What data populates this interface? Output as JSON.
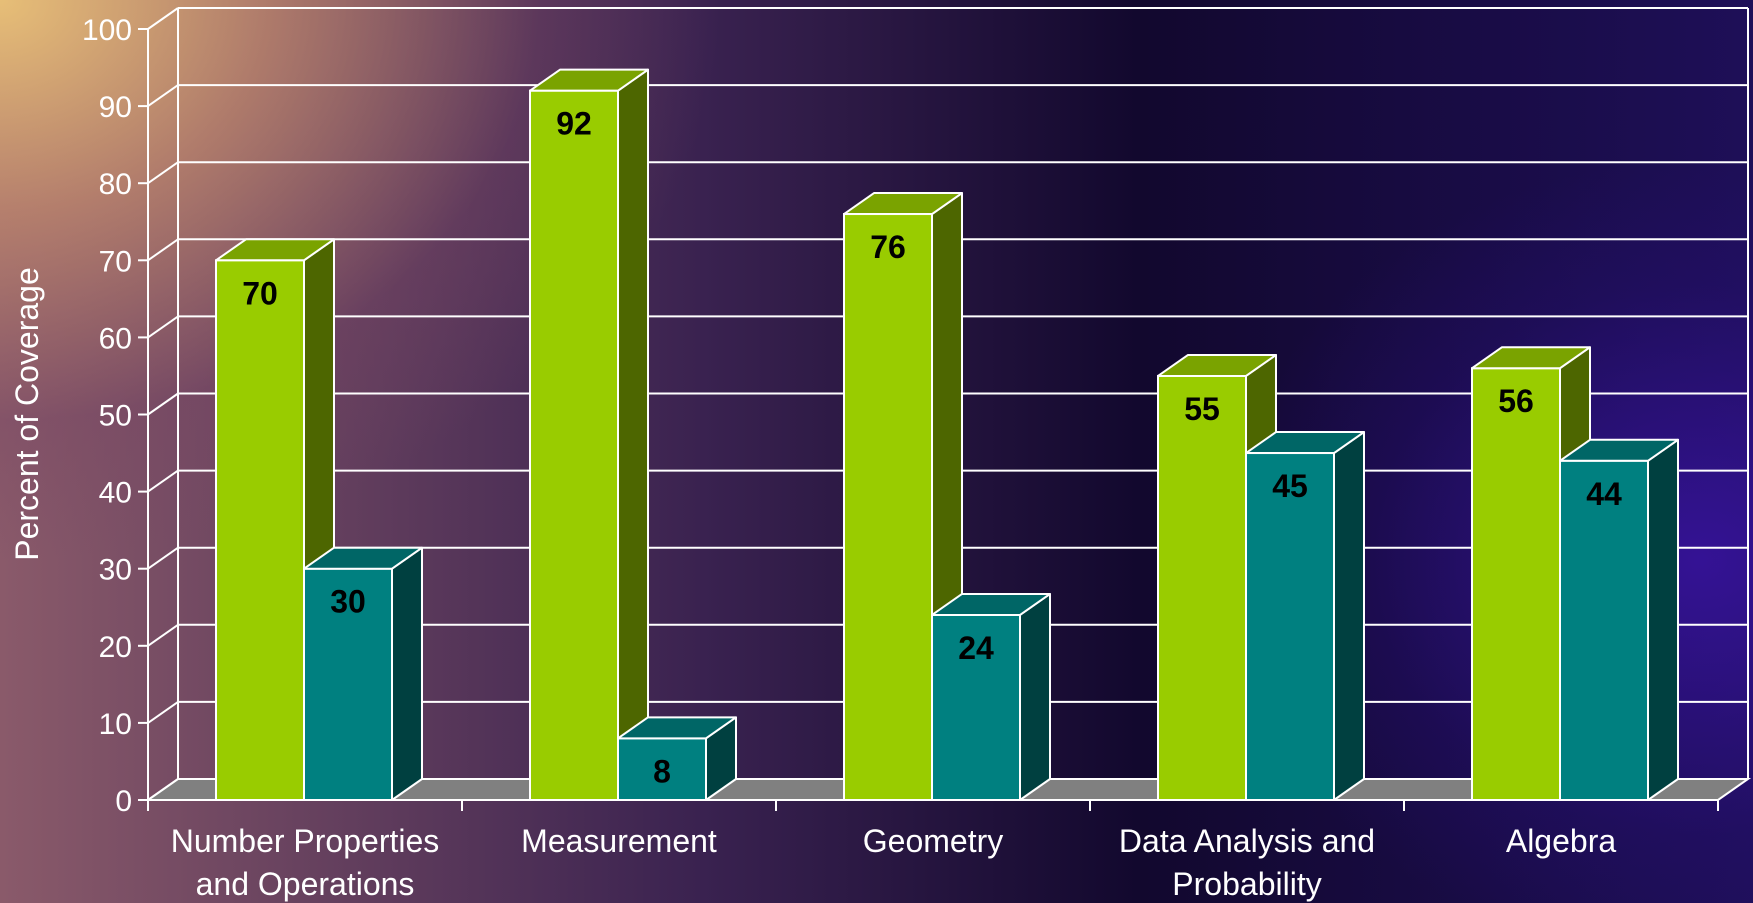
{
  "chart_data": {
    "type": "bar",
    "title": "",
    "xlabel": "",
    "ylabel": "Percent of Coverage",
    "ylim": [
      0,
      100
    ],
    "yticks": [
      "0",
      "10",
      "20",
      "30",
      "40",
      "50",
      "60",
      "70",
      "80",
      "90",
      "100"
    ],
    "categories": [
      [
        "Number Properties",
        "and Operations"
      ],
      [
        "Measurement"
      ],
      [
        "Geometry"
      ],
      [
        "Data Analysis and",
        "Probability"
      ],
      [
        "Algebra"
      ]
    ],
    "series": [
      {
        "values": [
          70,
          92,
          76,
          55,
          56
        ],
        "color": "#99cc00"
      },
      {
        "values": [
          30,
          8,
          24,
          45,
          44
        ],
        "color": "#008080"
      }
    ],
    "grid": true,
    "style": "3d-clustered-column"
  }
}
